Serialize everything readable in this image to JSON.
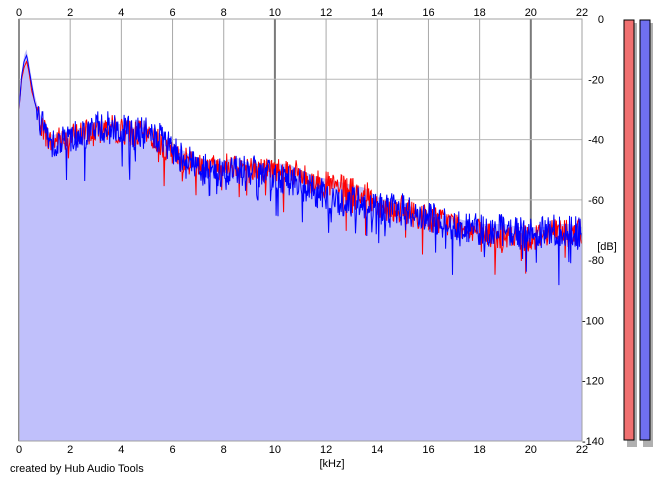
{
  "chart_data": {
    "type": "line",
    "title": "",
    "xlabel": "[kHz]",
    "ylabel": "[dB]",
    "xlim": [
      0,
      22
    ],
    "ylim": [
      -140,
      0
    ],
    "x_ticks": [
      0,
      2,
      4,
      6,
      8,
      10,
      12,
      14,
      16,
      18,
      20,
      22
    ],
    "y_ticks": [
      0,
      -20,
      -40,
      -60,
      -80,
      -100,
      -120,
      -140
    ],
    "x_tick_labels": [
      "0",
      "2",
      "4",
      "6",
      "8",
      "10",
      "12",
      "14",
      "16",
      "18",
      "20",
      "22"
    ],
    "y_tick_labels": [
      "0",
      "-20",
      "-40",
      "-60",
      "-80",
      "-100",
      "-120",
      "-140"
    ],
    "grid": true,
    "legend": "none",
    "fill_color": "#c0c0fb",
    "series": [
      {
        "color": "#ff0000",
        "x": [
          0,
          0.1,
          0.2,
          0.3,
          0.4,
          0.5,
          0.6,
          0.8,
          1.0,
          1.2,
          1.5,
          2.0,
          2.5,
          3.0,
          3.5,
          4.0,
          4.5,
          5.0,
          5.5,
          6.0,
          6.5,
          7.0,
          7.5,
          8.0,
          8.5,
          9.0,
          9.5,
          10.0,
          10.5,
          11.0,
          11.5,
          12.0,
          12.5,
          13.0,
          13.5,
          14.0,
          14.5,
          15.0,
          15.5,
          16.0,
          16.5,
          17.0,
          17.5,
          18.0,
          18.5,
          19.0,
          19.5,
          20.0,
          20.5,
          21.0,
          21.5,
          22.0
        ],
        "y": [
          -30,
          -20,
          -16,
          -14,
          -18,
          -24,
          -27,
          -33,
          -37,
          -41,
          -40,
          -39,
          -38,
          -37,
          -36,
          -37,
          -38,
          -38,
          -41,
          -45,
          -47,
          -48,
          -49,
          -49,
          -48,
          -50,
          -50,
          -50,
          -50,
          -52,
          -54,
          -55,
          -56,
          -57,
          -58,
          -61,
          -63,
          -63,
          -65,
          -66,
          -67,
          -68,
          -69,
          -71,
          -72,
          -73,
          -72,
          -73,
          -71,
          -70,
          -70,
          -71
        ]
      },
      {
        "color": "#0000ff",
        "x": [
          0,
          0.1,
          0.2,
          0.3,
          0.4,
          0.5,
          0.6,
          0.8,
          1.0,
          1.2,
          1.5,
          2.0,
          2.5,
          3.0,
          3.5,
          4.0,
          4.5,
          5.0,
          5.5,
          6.0,
          6.5,
          7.0,
          7.5,
          8.0,
          8.5,
          9.0,
          9.5,
          10.0,
          10.5,
          11.0,
          11.5,
          12.0,
          12.5,
          13.0,
          13.5,
          14.0,
          14.5,
          15.0,
          15.5,
          16.0,
          16.5,
          17.0,
          17.5,
          18.0,
          18.5,
          19.0,
          19.5,
          20.0,
          20.5,
          21.0,
          21.5,
          22.0
        ],
        "y": [
          -30,
          -19,
          -14,
          -12,
          -17,
          -22,
          -27,
          -34,
          -37,
          -40,
          -41,
          -39,
          -38,
          -36,
          -36,
          -37,
          -38,
          -38,
          -40,
          -44,
          -46,
          -49,
          -51,
          -51,
          -50,
          -50,
          -52,
          -52,
          -53,
          -55,
          -57,
          -59,
          -61,
          -61,
          -61,
          -63,
          -63,
          -63,
          -65,
          -66,
          -67,
          -68,
          -69,
          -70,
          -70,
          -70,
          -71,
          -71,
          -71,
          -70,
          -70,
          -71
        ]
      }
    ]
  },
  "meters": [
    {
      "color": "#f07070"
    },
    {
      "color": "#7070f0"
    }
  ],
  "footer": {
    "credit": "created by Hub Audio Tools"
  }
}
